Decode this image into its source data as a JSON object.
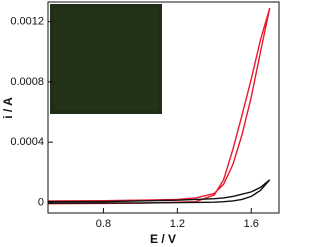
{
  "chart_data": {
    "type": "line",
    "x_label": "E / V",
    "y_label": "i / A",
    "x": [
      0.5,
      0.8,
      1.0,
      1.2,
      1.3,
      1.4,
      1.45,
      1.5,
      1.55,
      1.6,
      1.65,
      1.7,
      1.65,
      1.6,
      1.55,
      1.5,
      1.45,
      1.4,
      1.3,
      1.0,
      0.5
    ],
    "series": [
      {
        "color": "#e8192c",
        "values": [
          1e-05,
          1.2e-05,
          1.5e-05,
          2e-05,
          3e-05,
          6e-05,
          0.00012,
          0.00025,
          0.00045,
          0.0007,
          0.001,
          0.00129,
          0.00108,
          0.00082,
          0.00058,
          0.00035,
          0.00015,
          5e-05,
          5e-06,
          -5e-06,
          -8e-06
        ]
      },
      {
        "color": "#111111",
        "values": [
          5e-06,
          6e-06,
          1e-05,
          1.5e-05,
          2e-05,
          2.5e-05,
          3e-05,
          4e-05,
          5.5e-05,
          7e-05,
          0.0001,
          0.00015,
          8e-05,
          4e-05,
          2e-05,
          1e-05,
          5e-06,
          2e-06,
          0,
          -3e-06,
          -5e-06
        ]
      }
    ],
    "xlim": [
      0.5,
      1.75
    ],
    "xticks": [
      0.8,
      1.2,
      1.6
    ],
    "ylim": [
      -7e-05,
      0.00133
    ],
    "yticks": [
      0,
      0.0004,
      0.0008,
      0.0012
    ]
  }
}
